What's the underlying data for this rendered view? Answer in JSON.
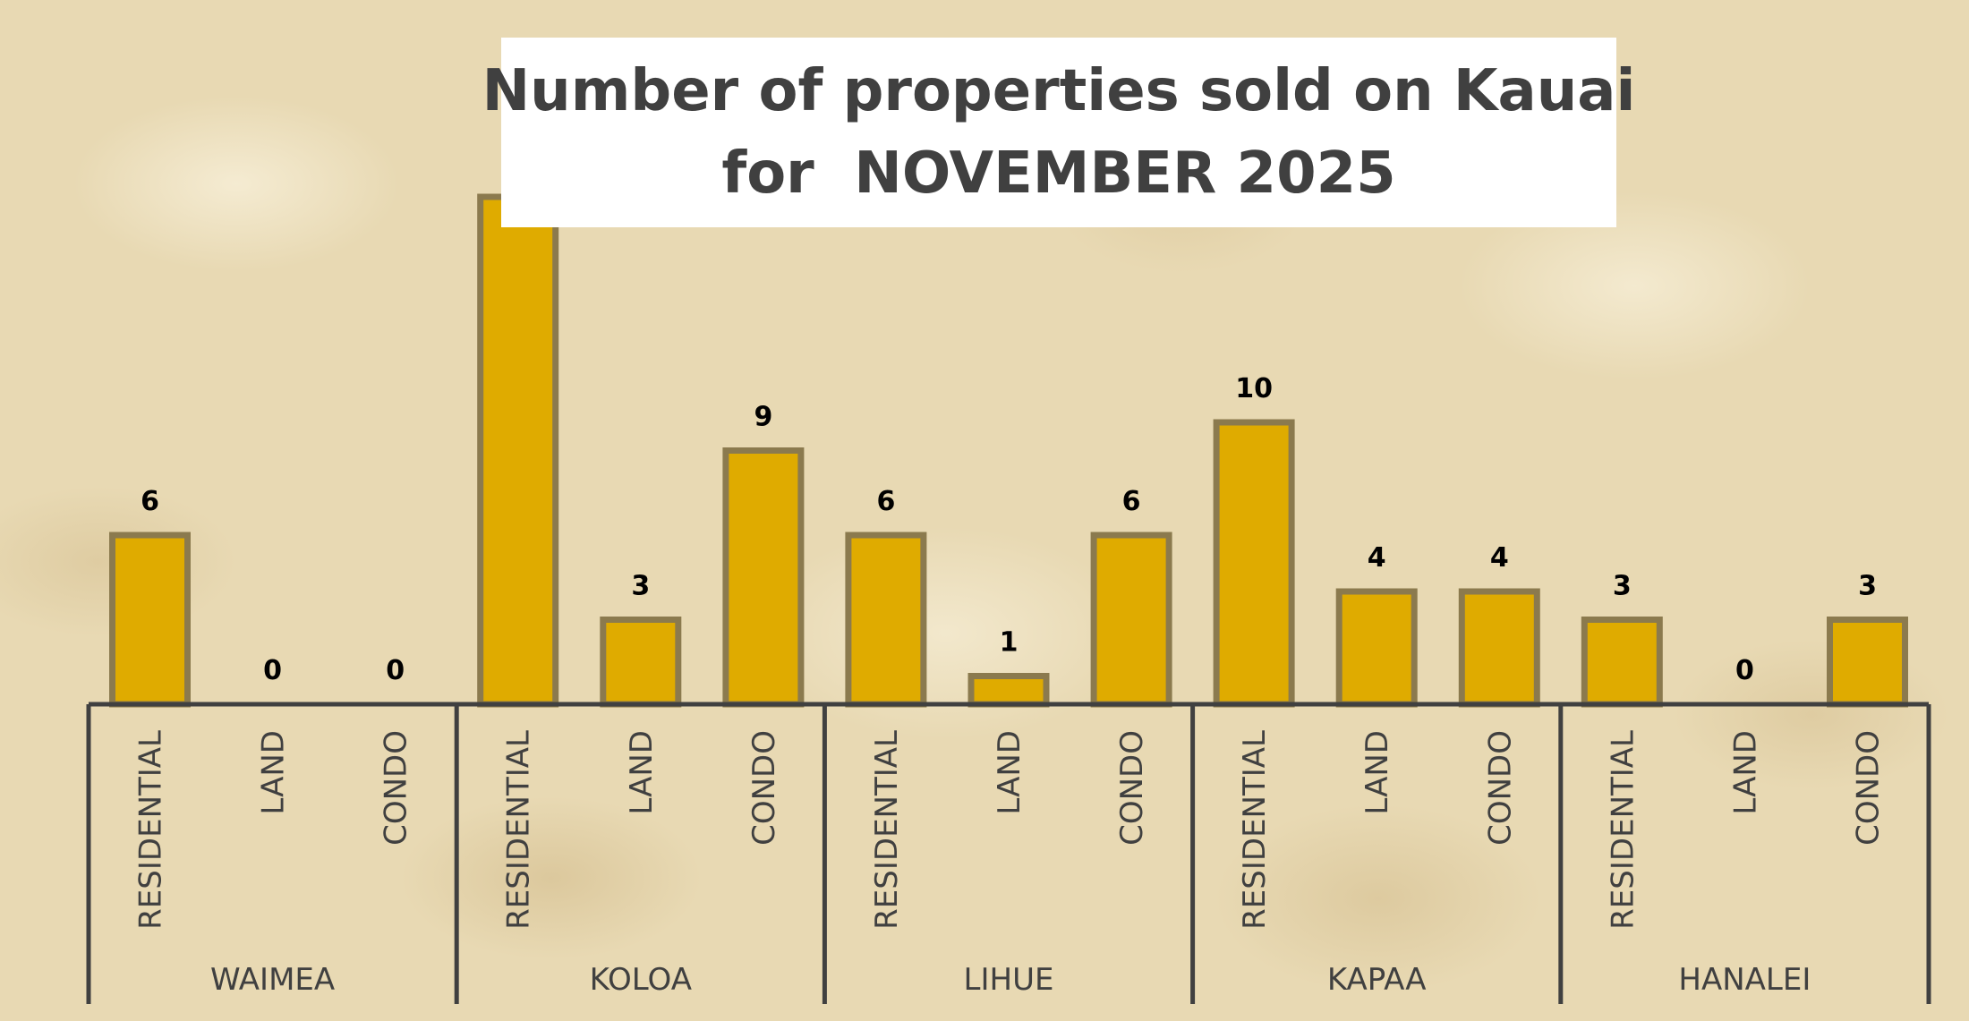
{
  "chart_data": {
    "type": "bar",
    "title_line_1": "Number of properties sold on Kauai",
    "title_line_2": "for  NOVEMBER 2025",
    "groups": [
      "WAIMEA",
      "KOLOA",
      "LIHUE",
      "KAPAA",
      "HANALEI"
    ],
    "categories": [
      "RESIDENTIAL",
      "LAND",
      "CONDO"
    ],
    "values": [
      [
        6,
        0,
        0
      ],
      [
        18,
        3,
        9
      ],
      [
        6,
        1,
        6
      ],
      [
        10,
        4,
        4
      ],
      [
        3,
        0,
        3
      ]
    ],
    "value_labels": [
      [
        "6",
        "0",
        "0"
      ],
      [
        "",
        "3",
        "9"
      ],
      [
        "6",
        "1",
        "6"
      ],
      [
        "10",
        "4",
        "4"
      ],
      [
        "3",
        "0",
        "3"
      ]
    ],
    "xlabel": "",
    "ylabel": "",
    "grid": false,
    "legend": "none",
    "colors": {
      "bar_fill": "#dfab00",
      "bar_border": "#8b7a4e",
      "axis": "#404040",
      "label_text": "#404040",
      "value_text": "#000000",
      "title_text": "#404040",
      "title_bg": "#ffffff",
      "background": "#e8d9b3"
    }
  }
}
